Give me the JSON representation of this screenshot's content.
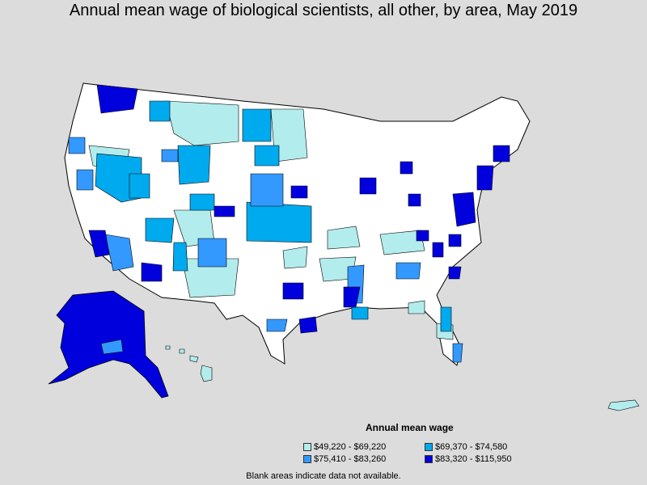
{
  "title": "Annual mean wage of biological scientists, all other, by area, May 2019",
  "legend": {
    "title": "Annual mean wage",
    "items": [
      {
        "label": "$49,220 - $69,220",
        "color": "#b3ecec"
      },
      {
        "label": "$69,370 - $74,580",
        "color": "#00aaee"
      },
      {
        "label": "$75,410 - $83,260",
        "color": "#3399ff"
      },
      {
        "label": "$83,320 - $115,950",
        "color": "#0000dd"
      }
    ]
  },
  "note": "Blank areas indicate data not available.",
  "colors": {
    "background": "#dcdcdc",
    "blank": "#ffffff",
    "border": "#000000"
  }
}
